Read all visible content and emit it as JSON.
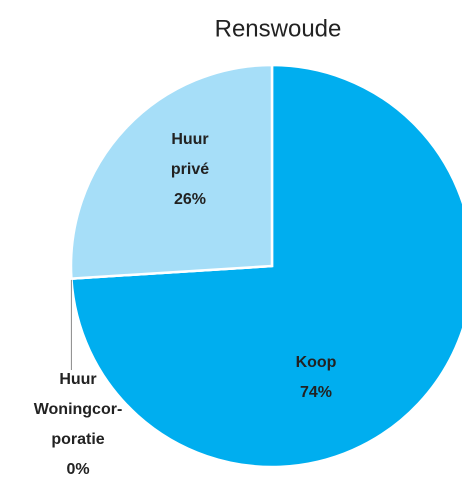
{
  "chart_data": {
    "type": "pie",
    "title": "Renswoude",
    "categories": [
      "Koop",
      "Huur Woningcor-poratie",
      "Huur privé"
    ],
    "values": [
      74,
      0,
      26
    ],
    "value_labels": [
      "74%",
      "0%",
      "26%"
    ],
    "colors": [
      "#00aeef",
      "#00aeef",
      "#a6def8"
    ]
  }
}
